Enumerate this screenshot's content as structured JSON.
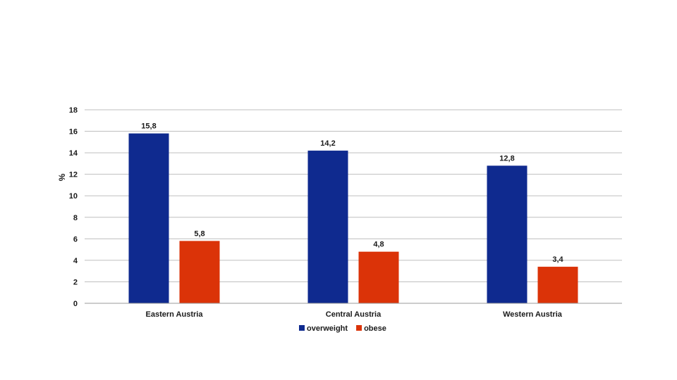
{
  "chart_data": {
    "type": "bar",
    "title": "",
    "xlabel": "",
    "ylabel": "%",
    "ylim": [
      0,
      18
    ],
    "yticks": [
      0,
      2,
      4,
      6,
      8,
      10,
      12,
      14,
      16,
      18
    ],
    "grid": true,
    "legend_position": "bottom",
    "categories": [
      "Eastern Austria",
      "Central Austria",
      "Western Austria"
    ],
    "series": [
      {
        "name": "overweight",
        "color": "#0f2a8f",
        "values": [
          15.8,
          14.2,
          12.8
        ],
        "labels": [
          "15,8",
          "14,2",
          "12,8"
        ]
      },
      {
        "name": "obese",
        "color": "#db3308",
        "values": [
          5.8,
          4.8,
          3.4
        ],
        "labels": [
          "5,8",
          "4,8",
          "3,4"
        ]
      }
    ]
  }
}
